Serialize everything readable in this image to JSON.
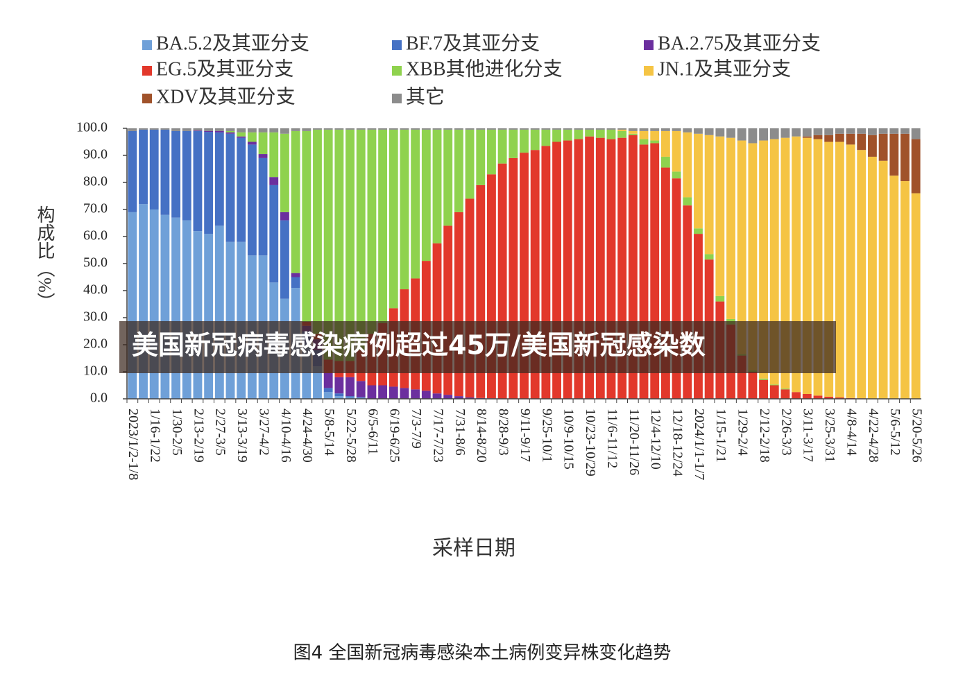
{
  "chart_data": {
    "type": "bar",
    "stacked": true,
    "xlabel": "采样日期",
    "ylabel": "构成比（%）",
    "categories": [
      "2023/1/2-1/8",
      null,
      "1/16-1/22",
      null,
      "1/30-2/5",
      null,
      "2/13-2/19",
      null,
      "2/27-3/5",
      null,
      "3/13-3/19",
      null,
      "3/27-4/2",
      null,
      "4/10-4/16",
      null,
      "4/24-4/30",
      null,
      "5/8-5/14",
      null,
      "5/22-5/28",
      null,
      "6/5-6/11",
      null,
      "6/19-6/25",
      null,
      "7/3-7/9",
      null,
      "7/17-7/23",
      null,
      "7/31-8/6",
      null,
      "8/14-8/20",
      null,
      "8/28-9/3",
      null,
      "9/11-9/17",
      null,
      "9/25-10/1",
      null,
      "10/9-10/15",
      null,
      "10/23-10/29",
      null,
      "11/6-11/12",
      null,
      "11/20-11/26",
      null,
      "12/4-12/10",
      null,
      "12/18-12/24",
      null,
      "2024/1/1-1/7",
      null,
      "1/15-1/21",
      null,
      "1/29-2/4",
      null,
      "2/12-2/18",
      null,
      "2/26-3/3",
      null,
      "3/11-3/17",
      null,
      "3/25-3/31",
      null,
      "4/8-4/14",
      null,
      "4/22-4/28",
      null,
      "5/6-5/12",
      null,
      "5/20-5/26"
    ],
    "series": [
      {
        "name": "BA.5.2及其亚分支",
        "color": "#6fa0d8",
        "values": [
          69,
          72,
          70,
          68,
          67,
          66,
          62,
          61,
          64,
          58,
          58,
          53,
          53,
          43,
          37,
          41,
          20,
          12,
          2.5,
          1,
          0.5,
          0.3,
          0,
          0,
          0,
          0,
          0,
          0,
          0,
          0,
          0,
          0,
          0,
          0,
          0,
          0,
          0,
          0,
          0,
          0,
          0,
          0,
          0,
          0,
          0,
          0,
          0,
          0,
          0,
          0,
          0,
          0,
          0,
          0,
          0,
          0,
          0,
          0,
          0,
          0,
          0,
          0,
          0,
          0,
          0,
          0,
          0,
          0,
          0,
          0,
          0,
          0,
          0
        ]
      },
      {
        "name": "BF.7及其亚分支",
        "color": "#4571c4",
        "values": [
          30,
          27.5,
          29.5,
          31.5,
          32,
          33,
          37,
          37.7,
          34.5,
          40,
          38.5,
          41,
          36,
          36,
          29,
          4,
          5,
          6,
          1.5,
          1,
          0.5,
          0.3,
          0,
          0,
          0,
          0,
          0,
          0,
          0,
          0,
          0,
          0,
          0,
          0,
          0,
          0,
          0,
          0,
          0,
          0,
          0,
          0,
          0,
          0,
          0,
          0,
          0,
          0,
          0,
          0,
          0,
          0,
          0,
          0,
          0,
          0,
          0,
          0,
          0,
          0,
          0,
          0,
          0,
          0,
          0,
          0,
          0,
          0,
          0,
          0,
          0,
          0,
          0
        ]
      },
      {
        "name": "BA.2.75及其亚分支",
        "color": "#6b2f9e",
        "values": [
          0,
          0,
          0,
          0,
          0,
          0,
          0.2,
          0.3,
          0.5,
          0.5,
          0.5,
          1,
          1.5,
          3,
          3,
          1.5,
          2,
          4,
          5.5,
          6,
          7,
          6,
          5,
          5,
          4.5,
          4,
          3.5,
          3,
          2,
          1.5,
          1,
          0.5,
          0.3,
          0.2,
          0,
          0,
          0,
          0,
          0,
          0,
          0,
          0,
          0,
          0,
          0,
          0,
          0,
          0,
          0,
          0,
          0,
          0,
          0,
          0,
          0,
          0,
          0,
          0,
          0,
          0,
          0,
          0,
          0,
          0,
          0,
          0,
          0,
          0,
          0,
          0,
          0,
          0,
          0
        ]
      },
      {
        "name": "EG.5及其亚分支",
        "color": "#e2382b",
        "values": [
          0,
          0,
          0,
          0,
          0,
          0,
          0,
          0,
          0,
          0,
          0,
          0,
          0,
          0,
          0,
          0,
          1.5,
          2,
          5,
          6,
          6,
          11.4,
          19,
          23,
          29,
          36.5,
          41,
          48,
          55.5,
          62.5,
          68,
          73.5,
          78.7,
          82.8,
          87,
          89,
          91,
          92,
          93.5,
          95,
          95.5,
          96,
          97,
          96.5,
          96,
          96.5,
          97.5,
          94,
          94.5,
          85.5,
          81.5,
          71.5,
          61,
          51.5,
          36,
          27.5,
          16,
          10,
          7,
          5,
          3.5,
          2.5,
          1.8,
          1.2,
          0.8,
          0.5,
          0.3,
          0.2,
          0.1,
          0.1,
          0,
          0,
          0
        ]
      },
      {
        "name": "XBB其他进化分支",
        "color": "#8fd24e",
        "values": [
          0,
          0,
          0,
          0,
          0,
          0,
          0,
          0,
          0,
          0.5,
          1.5,
          3.5,
          8,
          16.5,
          29,
          52.5,
          70.5,
          75.5,
          85,
          85.5,
          85.5,
          81.5,
          75.5,
          71.5,
          66,
          59,
          55,
          48.5,
          42,
          35.5,
          30.5,
          25.5,
          20.5,
          16.5,
          12.5,
          10.5,
          8.5,
          7.5,
          6,
          4.5,
          4,
          3.5,
          2.5,
          3,
          3.5,
          2.5,
          0.5,
          2,
          1,
          4,
          2.5,
          3,
          2,
          2,
          2,
          2,
          0.5,
          0.5,
          0.5,
          0.3,
          0.3,
          0,
          0,
          0,
          0,
          0,
          0,
          0,
          0,
          0,
          0,
          0,
          0
        ]
      },
      {
        "name": "JN.1及其亚分支",
        "color": "#f5c444",
        "values": [
          0,
          0,
          0,
          0,
          0,
          0,
          0,
          0,
          0,
          0,
          0,
          0,
          0,
          0,
          0,
          0,
          0,
          0,
          0,
          0,
          0,
          0,
          0,
          0,
          0,
          0,
          0,
          0,
          0,
          0,
          0,
          0,
          0,
          0,
          0,
          0,
          0,
          0,
          0,
          0,
          0,
          0,
          0,
          0,
          0,
          0.5,
          1,
          3,
          3.5,
          9.5,
          15,
          24,
          35,
          44,
          59,
          67,
          79,
          84,
          88,
          90.7,
          92.7,
          94.5,
          94.7,
          94.8,
          94.2,
          94.5,
          93.7,
          91.8,
          89.4,
          87.9,
          82.5,
          80.5,
          76
        ]
      },
      {
        "name": "XDV及其亚分支",
        "color": "#a0522a",
        "values": [
          0,
          0,
          0,
          0,
          0,
          0,
          0,
          0,
          0,
          0,
          0,
          0,
          0,
          0,
          0,
          0,
          0,
          0,
          0,
          0,
          0,
          0,
          0,
          0,
          0,
          0,
          0,
          0,
          0,
          0,
          0,
          0,
          0,
          0,
          0,
          0,
          0,
          0,
          0,
          0,
          0,
          0,
          0,
          0,
          0,
          0,
          0,
          0,
          0,
          0,
          0,
          0,
          0,
          0,
          0,
          0,
          0,
          0,
          0,
          0,
          0,
          0,
          0.5,
          1.5,
          2.5,
          3,
          4,
          6,
          8,
          10,
          15.5,
          17.5,
          20
        ]
      },
      {
        "name": "其它",
        "color": "#8c8c8c",
        "values": [
          1,
          0.5,
          0.5,
          0.5,
          1,
          1,
          0.8,
          1,
          1,
          1,
          1.5,
          1.5,
          1.5,
          1.5,
          2,
          1,
          1,
          0.5,
          0.5,
          0.5,
          0.5,
          0.5,
          0.5,
          0.5,
          0.5,
          0.5,
          0.5,
          0.5,
          0.5,
          0.5,
          0.5,
          0.5,
          0.5,
          0.5,
          0.5,
          0.5,
          0.5,
          0.5,
          0.5,
          0.5,
          0.5,
          0.5,
          0.5,
          0.5,
          0.5,
          0.5,
          1,
          1,
          1,
          1,
          1,
          1.5,
          2,
          2.5,
          3,
          3.5,
          4.5,
          5.5,
          4.5,
          4,
          3.5,
          3,
          3,
          2.5,
          2.5,
          2,
          2,
          2,
          2.5,
          2,
          2,
          2,
          4
        ]
      }
    ],
    "ylim": [
      0,
      100
    ],
    "yticks": [
      {
        "value": 0,
        "label": "0.0"
      },
      {
        "value": 10,
        "label": "10.0"
      },
      {
        "value": 20,
        "label": "20.0"
      },
      {
        "value": 30,
        "label": "30.0"
      },
      {
        "value": 40,
        "label": "40.0"
      },
      {
        "value": 50,
        "label": "50.0"
      },
      {
        "value": 60,
        "label": "60.0"
      },
      {
        "value": 70,
        "label": "70.0"
      },
      {
        "value": 80,
        "label": "80.0"
      },
      {
        "value": 90,
        "label": "90.0"
      },
      {
        "value": 100,
        "label": "100.0"
      }
    ],
    "legend": "top"
  },
  "overlay_title": "美国新冠病毒感染病例超过45万/美国新冠感染数",
  "caption": "图4 全国新冠病毒感染本土病例变异株变化趋势"
}
